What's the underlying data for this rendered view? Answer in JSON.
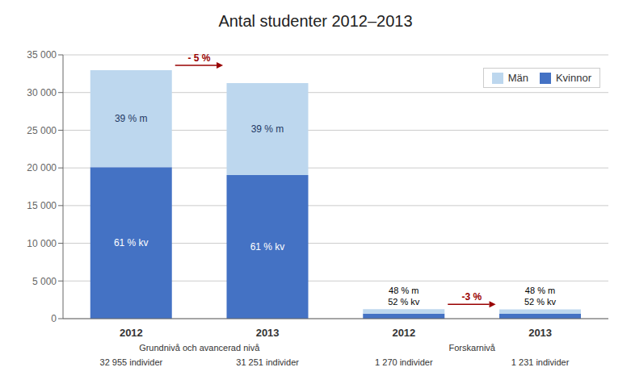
{
  "chart_data": {
    "type": "bar",
    "title": "Antal studenter 2012–2013",
    "stacked": true,
    "categories": [
      "2012",
      "2013",
      "2012",
      "2013"
    ],
    "series": [
      {
        "name": "Män",
        "color": "#bdd7ee",
        "values": [
          12852,
          12188,
          610,
          591
        ],
        "share_labels": [
          "39 % m",
          "39 % m",
          "48 % m",
          "48 % m"
        ]
      },
      {
        "name": "Kvinnor",
        "color": "#4472c4",
        "values": [
          20103,
          19063,
          660,
          640
        ],
        "share_labels": [
          "61 % kv",
          "61 % kv",
          "52 % kv",
          "52 % kv"
        ]
      }
    ],
    "groups": [
      {
        "label": "Grundnivå och avancerad nivå",
        "categories": [
          0,
          1
        ]
      },
      {
        "label": "Forskarnivå",
        "categories": [
          2,
          3
        ]
      }
    ],
    "category_notes": [
      "32 955 individer",
      "31 251 individer",
      "1 270 individer",
      "1 231 individer"
    ],
    "annotations": [
      {
        "text": "- 5 %",
        "from": 0,
        "to": 1,
        "color": "#990000"
      },
      {
        "text": "-3 %",
        "from": 2,
        "to": 3,
        "color": "#990000"
      }
    ],
    "ylim": [
      0,
      35000
    ],
    "yticks": [
      0,
      {
        "value": 5000,
        "label": "5 000"
      },
      {
        "value": 10000,
        "label": "10 000"
      },
      {
        "value": 15000,
        "label": "15 000"
      },
      {
        "value": 20000,
        "label": "20 000"
      },
      {
        "value": 25000,
        "label": "25 000"
      },
      {
        "value": 30000,
        "label": "30 000"
      },
      {
        "value": 35000,
        "label": "35 000"
      }
    ],
    "grid": true,
    "legend": "upper right"
  }
}
